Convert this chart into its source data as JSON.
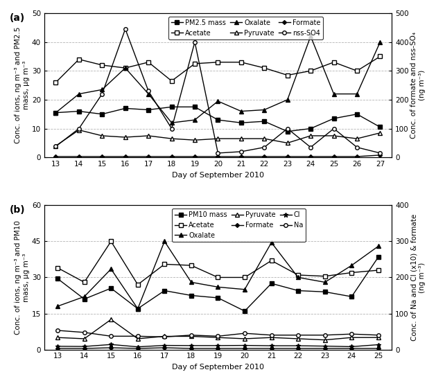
{
  "panel_a": {
    "days": [
      13,
      14,
      15,
      16,
      17,
      18,
      19,
      20,
      21,
      22,
      23,
      24,
      25,
      26,
      27
    ],
    "PM25_mass": [
      15.5,
      16.0,
      15.0,
      17.0,
      16.5,
      17.5,
      17.5,
      13.0,
      12.0,
      12.5,
      9.0,
      10.0,
      13.5,
      15.0,
      10.5
    ],
    "Acetate": [
      26.0,
      34.0,
      32.0,
      31.0,
      33.0,
      26.5,
      32.5,
      33.0,
      33.0,
      31.0,
      28.5,
      30.0,
      33.0,
      30.0,
      35.0
    ],
    "Oxalate": [
      15.5,
      22.0,
      23.5,
      31.0,
      22.0,
      12.0,
      13.0,
      19.5,
      16.0,
      16.5,
      20.0,
      42.0,
      22.0,
      22.0,
      40.0
    ],
    "Pyruvate": [
      4.0,
      9.5,
      7.5,
      7.0,
      7.5,
      6.5,
      6.0,
      6.5,
      6.5,
      6.5,
      5.0,
      7.5,
      7.5,
      6.5,
      8.5
    ],
    "Formate": [
      0.3,
      0.3,
      0.3,
      0.3,
      0.3,
      0.3,
      0.3,
      0.3,
      0.3,
      0.3,
      0.3,
      0.3,
      0.3,
      0.3,
      0.8
    ],
    "nss_SO4": [
      3.8,
      10.0,
      22.0,
      44.5,
      23.0,
      10.0,
      40.0,
      1.5,
      2.0,
      3.5,
      10.0,
      3.5,
      10.0,
      3.5,
      1.5
    ],
    "title": "(a)",
    "ylabel_left": "Conc. of ions, ng m⁻³ and PM2.5\nmass, μg m⁻³",
    "ylabel_right": "Conc. of formate and nss-SO₄\n(ng m⁻³)",
    "ylim_left": [
      0,
      50
    ],
    "ylim_right": [
      0,
      500
    ],
    "yticks_left": [
      0,
      10,
      20,
      30,
      40,
      50
    ],
    "yticks_right": [
      0,
      100,
      200,
      300,
      400,
      500
    ],
    "xlabel": "Day of September 2010"
  },
  "panel_b": {
    "days": [
      13,
      14,
      15,
      16,
      17,
      18,
      19,
      20,
      21,
      22,
      23,
      24,
      25
    ],
    "PM10_mass": [
      29.5,
      21.0,
      25.5,
      17.0,
      24.5,
      22.5,
      21.5,
      16.0,
      27.5,
      24.5,
      24.0,
      22.0,
      38.5
    ],
    "Acetate": [
      34.0,
      28.0,
      45.0,
      27.0,
      35.5,
      35.0,
      30.0,
      30.0,
      37.0,
      31.0,
      30.5,
      32.0,
      33.0
    ],
    "Oxalate": [
      18.0,
      22.0,
      33.5,
      17.0,
      45.0,
      28.0,
      26.0,
      25.0,
      44.5,
      30.0,
      28.0,
      35.0,
      43.0
    ],
    "Pyruvate": [
      5.0,
      4.5,
      12.5,
      4.5,
      5.5,
      5.5,
      5.0,
      4.5,
      5.0,
      4.5,
      4.0,
      5.0,
      5.0
    ],
    "Formate": [
      0.3,
      0.3,
      0.5,
      0.3,
      0.5,
      0.3,
      0.3,
      0.3,
      0.3,
      0.3,
      0.3,
      0.3,
      0.3
    ],
    "Cl": [
      9.0,
      8.5,
      14.0,
      7.5,
      11.5,
      11.0,
      11.0,
      11.5,
      10.5,
      10.5,
      9.5,
      8.0,
      13.5
    ],
    "Na": [
      53.0,
      47.5,
      37.0,
      37.0,
      35.0,
      40.0,
      37.0,
      45.0,
      40.0,
      40.0,
      40.0,
      43.0,
      40.0
    ],
    "title": "(b)",
    "ylabel_left": "Conc. of ions, ng m⁻³ and PM10\nmass, μg m⁻³",
    "ylabel_right": "Conc. of Na and Cl (x10) & formate\n(ng m⁻³)",
    "ylim_left": [
      0,
      60
    ],
    "ylim_right": [
      0,
      400
    ],
    "yticks_left": [
      0,
      15,
      30,
      45,
      60
    ],
    "yticks_right": [
      0,
      100,
      200,
      300,
      400
    ],
    "xlabel": "Day of September 2010"
  }
}
